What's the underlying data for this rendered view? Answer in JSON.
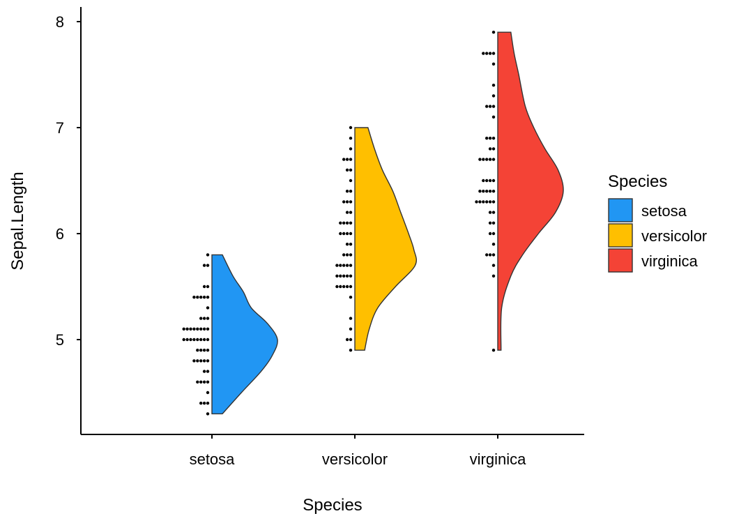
{
  "chart_data": {
    "type": "violin",
    "title": "",
    "xlabel": "Species",
    "ylabel": "Sepal.Length",
    "ylim": [
      4.2,
      8.1
    ],
    "yticks": [
      5,
      6,
      7,
      8
    ],
    "categories": [
      "setosa",
      "versicolor",
      "virginica"
    ],
    "legend": {
      "title": "Species",
      "position": "right",
      "entries": [
        "setosa",
        "versicolor",
        "virginica"
      ]
    },
    "colors": {
      "setosa": "#2196F3",
      "versicolor": "#FFBF00",
      "virginica": "#F44336",
      "outline": "#333333",
      "dots": "#000000"
    },
    "series": [
      {
        "name": "setosa",
        "values": [
          5.1,
          4.9,
          4.7,
          4.6,
          5.0,
          5.4,
          4.6,
          5.0,
          4.4,
          4.9,
          5.4,
          4.8,
          4.8,
          4.3,
          5.8,
          5.7,
          5.4,
          5.1,
          5.7,
          5.1,
          5.4,
          5.1,
          4.6,
          5.1,
          4.8,
          5.0,
          5.0,
          5.2,
          5.2,
          4.7,
          4.8,
          5.4,
          5.2,
          5.5,
          4.9,
          5.0,
          5.5,
          4.9,
          4.4,
          5.1,
          5.0,
          4.5,
          4.4,
          5.0,
          5.1,
          4.8,
          5.1,
          4.6,
          5.3,
          5.0
        ],
        "density": [
          [
            4.3,
            0.16
          ],
          [
            4.5,
            0.45
          ],
          [
            4.7,
            0.75
          ],
          [
            4.85,
            0.92
          ],
          [
            5.0,
            1.0
          ],
          [
            5.15,
            0.85
          ],
          [
            5.3,
            0.6
          ],
          [
            5.45,
            0.48
          ],
          [
            5.6,
            0.32
          ],
          [
            5.8,
            0.16
          ]
        ]
      },
      {
        "name": "versicolor",
        "values": [
          7.0,
          6.4,
          6.9,
          5.5,
          6.5,
          5.7,
          6.3,
          4.9,
          6.6,
          5.2,
          5.0,
          5.9,
          6.0,
          6.1,
          5.6,
          6.7,
          5.6,
          5.8,
          6.2,
          5.6,
          5.9,
          6.1,
          6.3,
          6.1,
          6.4,
          6.6,
          6.8,
          6.7,
          6.0,
          5.7,
          5.5,
          5.5,
          5.8,
          6.0,
          5.4,
          6.0,
          6.7,
          6.3,
          5.6,
          5.5,
          5.5,
          6.1,
          5.8,
          5.0,
          5.6,
          5.7,
          5.7,
          6.2,
          5.1,
          5.7
        ],
        "density": [
          [
            4.9,
            0.15
          ],
          [
            5.1,
            0.22
          ],
          [
            5.3,
            0.35
          ],
          [
            5.5,
            0.62
          ],
          [
            5.7,
            0.92
          ],
          [
            5.85,
            0.9
          ],
          [
            6.0,
            0.82
          ],
          [
            6.2,
            0.7
          ],
          [
            6.4,
            0.58
          ],
          [
            6.6,
            0.42
          ],
          [
            6.8,
            0.3
          ],
          [
            7.0,
            0.2
          ]
        ]
      },
      {
        "name": "virginica",
        "values": [
          6.3,
          5.8,
          7.1,
          6.3,
          6.5,
          7.6,
          4.9,
          7.3,
          6.7,
          7.2,
          6.5,
          6.4,
          6.8,
          5.7,
          5.8,
          6.4,
          6.5,
          7.7,
          7.7,
          6.0,
          6.9,
          5.6,
          7.7,
          6.3,
          6.7,
          7.2,
          6.2,
          6.1,
          6.4,
          7.2,
          7.4,
          7.9,
          6.4,
          6.3,
          6.1,
          7.7,
          6.3,
          6.4,
          6.0,
          6.9,
          6.7,
          6.9,
          5.8,
          6.8,
          6.7,
          6.7,
          6.3,
          6.5,
          6.2,
          5.9
        ],
        "density": [
          [
            4.9,
            0.05
          ],
          [
            5.3,
            0.06
          ],
          [
            5.6,
            0.2
          ],
          [
            5.8,
            0.38
          ],
          [
            6.0,
            0.62
          ],
          [
            6.2,
            0.88
          ],
          [
            6.4,
            1.0
          ],
          [
            6.6,
            0.92
          ],
          [
            6.8,
            0.72
          ],
          [
            7.0,
            0.55
          ],
          [
            7.2,
            0.42
          ],
          [
            7.5,
            0.32
          ],
          [
            7.7,
            0.25
          ],
          [
            7.9,
            0.2
          ]
        ]
      }
    ]
  }
}
